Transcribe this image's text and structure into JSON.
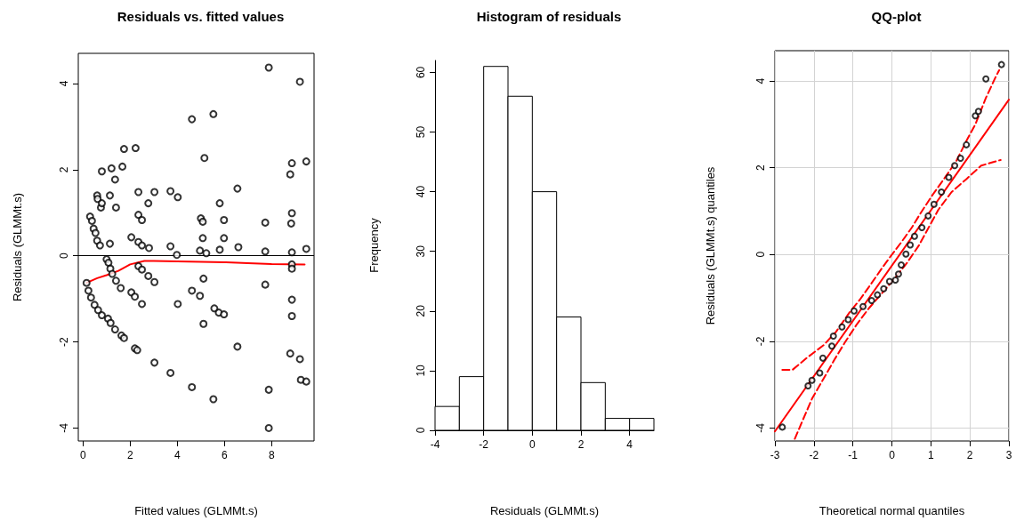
{
  "chart_data": [
    {
      "type": "scatter",
      "title": "Residuals vs. fitted values",
      "xlabel": "Fitted values (GLMMt.s)",
      "ylabel": "Residuals (GLMMt.s)",
      "xlim": [
        -0.2,
        9.8
      ],
      "xticks": [
        0,
        2,
        4,
        6,
        8
      ],
      "ylim": [
        -4.3,
        4.7
      ],
      "yticks": [
        -4,
        -2,
        0,
        2,
        4
      ],
      "grid": false,
      "ref_lines": [
        {
          "axis": "y",
          "value": 0,
          "color": "#000000"
        }
      ],
      "series": [
        {
          "color": "#000000",
          "marker": "circle",
          "x": [
            7.88,
            9.2,
            4.62,
            5.53,
            5.15,
            1.74,
            2.23,
            0.8,
            1.21,
            1.67,
            1.36,
            9.47,
            8.86,
            8.79,
            6.55,
            0.6,
            0.62,
            1.14,
            2.35,
            3.03,
            3.71,
            4.02,
            2.77,
            0.76,
            0.8,
            1.4,
            0.3,
            0.38,
            2.35,
            2.5,
            5.0,
            5.08,
            5.8,
            5.98,
            7.73,
            8.86,
            8.83,
            0.45,
            0.53,
            0.6,
            0.72,
            1.14,
            2.05,
            2.35,
            2.5,
            2.8,
            3.71,
            3.98,
            4.96,
            5.08,
            5.98,
            5.8,
            6.59,
            7.73,
            8.86,
            9.47,
            5.23,
            0.15,
            0.23,
            0.34,
            0.49,
            0.64,
            0.8,
            1.06,
            1.17,
            1.36,
            1.63,
            1.74,
            2.2,
            2.3,
            1.0,
            1.08,
            1.16,
            1.24,
            1.4,
            1.6,
            2.35,
            2.5,
            2.77,
            3.03,
            2.05,
            2.2,
            2.5,
            3.03,
            3.71,
            4.62,
            5.53,
            4.02,
            4.62,
            4.96,
            5.11,
            5.11,
            5.57,
            5.76,
            5.98,
            6.55,
            7.73,
            7.88,
            7.88,
            8.86,
            8.86,
            8.86,
            8.86,
            8.79,
            9.2,
            9.24,
            9.47
          ],
          "values": [
            4.37,
            4.04,
            3.17,
            3.29,
            2.27,
            2.48,
            2.5,
            1.96,
            2.03,
            2.07,
            1.77,
            2.19,
            2.15,
            1.89,
            1.56,
            1.4,
            1.32,
            1.4,
            1.48,
            1.48,
            1.5,
            1.36,
            1.22,
            1.12,
            1.22,
            1.12,
            0.91,
            0.81,
            0.95,
            0.83,
            0.87,
            0.79,
            1.22,
            0.83,
            0.77,
            0.99,
            0.75,
            0.63,
            0.53,
            0.35,
            0.24,
            0.28,
            0.43,
            0.32,
            0.24,
            0.18,
            0.22,
            0.02,
            0.12,
            0.41,
            0.41,
            0.14,
            0.2,
            0.1,
            0.08,
            0.16,
            0.06,
            -0.63,
            -0.81,
            -0.97,
            -1.14,
            -1.26,
            -1.38,
            -1.46,
            -1.56,
            -1.71,
            -1.85,
            -1.91,
            -2.15,
            -2.19,
            -0.08,
            -0.16,
            -0.3,
            -0.42,
            -0.58,
            -0.75,
            -0.24,
            -0.32,
            -0.47,
            -0.61,
            -0.85,
            -0.95,
            -1.12,
            -2.48,
            -2.72,
            -3.05,
            -3.33,
            -1.12,
            -0.81,
            -0.93,
            -0.53,
            -1.58,
            -1.22,
            -1.32,
            -1.36,
            -2.11,
            -0.67,
            -3.11,
            -4.0,
            -0.2,
            -0.3,
            -1.02,
            -1.4,
            -2.27,
            -2.4,
            -2.88,
            -2.92
          ]
        },
        {
          "type": "line",
          "color": "#ff0000",
          "marker": "none",
          "line_style": "solid",
          "x": [
            0.15,
            0.6,
            1.0,
            1.5,
            2.0,
            2.6,
            3.0,
            4,
            5,
            6,
            7,
            8,
            9.4
          ],
          "values": [
            -0.63,
            -0.52,
            -0.45,
            -0.35,
            -0.2,
            -0.12,
            -0.12,
            -0.13,
            -0.14,
            -0.15,
            -0.17,
            -0.19,
            -0.2
          ]
        }
      ]
    },
    {
      "type": "histogram",
      "title": "Histogram of residuals",
      "xlabel": "Residuals (GLMMt.s)",
      "ylabel": "Frequency",
      "color": "#ffffff",
      "bins": [
        -4,
        -3,
        -2,
        -1,
        0,
        1,
        2,
        3,
        4,
        5
      ],
      "values": [
        4,
        9,
        61,
        56,
        40,
        19,
        8,
        2,
        2
      ],
      "xlim": [
        -4,
        5
      ],
      "xticks": [
        -4,
        -2,
        0,
        2,
        4
      ],
      "ylim": [
        0,
        62
      ],
      "yticks": [
        0,
        10,
        20,
        30,
        40,
        50,
        60
      ],
      "grid": false
    },
    {
      "type": "scatter",
      "title": "QQ-plot",
      "xlabel": "Theoretical normal quantiles",
      "ylabel": "Residuals (GLMMt.s) quantiles",
      "xlim": [
        -3,
        3
      ],
      "xticks": [
        -3,
        -2,
        -1,
        0,
        1,
        2,
        3
      ],
      "ylim": [
        -4.3,
        4.7
      ],
      "yticks": [
        -4,
        -2,
        0,
        2,
        4
      ],
      "grid": true,
      "series": [
        {
          "color": "#000000",
          "marker": "circle",
          "x": [
            -2.81,
            -2.15,
            -2.05,
            -1.85,
            -1.77,
            -1.54,
            -1.5,
            -1.28,
            -1.12,
            -0.97,
            -0.74,
            -0.52,
            -0.37,
            -0.21,
            -0.06,
            0.09,
            0.17,
            0.24,
            0.36,
            0.47,
            0.58,
            0.77,
            0.93,
            1.08,
            1.27,
            1.46,
            1.61,
            1.76,
            1.91,
            2.14,
            2.22,
            2.41,
            2.81
          ],
          "values": [
            -3.98,
            -3.03,
            -2.9,
            -2.73,
            -2.39,
            -2.11,
            -1.88,
            -1.67,
            -1.5,
            -1.3,
            -1.2,
            -1.06,
            -0.93,
            -0.79,
            -0.62,
            -0.59,
            -0.45,
            -0.24,
            0.01,
            0.22,
            0.42,
            0.62,
            0.89,
            1.16,
            1.44,
            1.78,
            2.05,
            2.22,
            2.53,
            3.2,
            3.3,
            4.05,
            4.38
          ]
        },
        {
          "type": "line",
          "color": "#ff0000",
          "marker": "none",
          "line_style": "solid",
          "x": [
            -3,
            3
          ],
          "values": [
            -4.08,
            3.57
          ]
        },
        {
          "type": "line",
          "color": "#ff0000",
          "marker": "none",
          "line_style": "dashed",
          "x": [
            -2.81,
            -2.64,
            -2.55,
            -2.19,
            -1.75,
            -1.43,
            -1.09,
            -0.82,
            -0.52,
            -0.29,
            0.01,
            0.24,
            0.51,
            0.74,
            1.04,
            1.31,
            1.65,
            1.91,
            2.14,
            2.41,
            2.67,
            2.75
          ],
          "values": [
            -2.66,
            -2.66,
            -2.66,
            -2.39,
            -2.09,
            -1.78,
            -1.34,
            -1.04,
            -0.66,
            -0.36,
            0.01,
            0.28,
            0.62,
            0.96,
            1.37,
            1.71,
            2.15,
            2.62,
            3.0,
            3.61,
            4.11,
            4.25
          ]
        },
        {
          "type": "line",
          "color": "#ff0000",
          "marker": "none",
          "line_style": "dashed",
          "x": [
            -2.49,
            -2.3,
            -2.04,
            -1.73,
            -1.47,
            -1.2,
            -0.9,
            -0.59,
            -0.29,
            0.09,
            0.39,
            0.7,
            1.19,
            1.53,
            1.91,
            2.29,
            2.52,
            2.79
          ],
          "values": [
            -4.25,
            -3.85,
            -3.31,
            -2.83,
            -2.42,
            -2.02,
            -1.61,
            -1.24,
            -0.93,
            -0.53,
            -0.19,
            0.22,
            1.03,
            1.44,
            1.74,
            2.05,
            2.11,
            2.18
          ]
        }
      ]
    }
  ]
}
